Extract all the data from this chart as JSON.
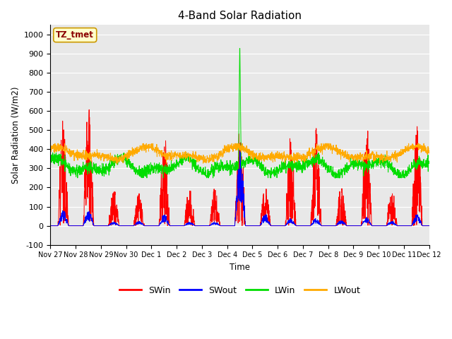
{
  "title": "4-Band Solar Radiation",
  "ylabel": "Solar Radiation (W/m2)",
  "xlabel": "Time",
  "annotation": "TZ_tmet",
  "ylim": [
    -100,
    1050
  ],
  "yticks": [
    -100,
    0,
    100,
    200,
    300,
    400,
    500,
    600,
    700,
    800,
    900,
    1000
  ],
  "x_tick_labels": [
    "Nov 27",
    "Nov 28",
    "Nov 29",
    "Nov 30",
    "Dec 1",
    "Dec 2",
    "Dec 3",
    "Dec 4",
    "Dec 5",
    "Dec 6",
    "Dec 7",
    "Dec 8",
    "Dec 9",
    "Dec 10",
    "Dec 11",
    "Dec 12"
  ],
  "colors": {
    "SWin": "#ff0000",
    "SWout": "#0000ff",
    "LWin": "#00dd00",
    "LWout": "#ffaa00"
  },
  "bg_color": "#e8e8e8",
  "annotation_box_color": "#ffffcc",
  "annotation_text_color": "#8B0000",
  "n_days": 15,
  "pts_per_day": 144
}
